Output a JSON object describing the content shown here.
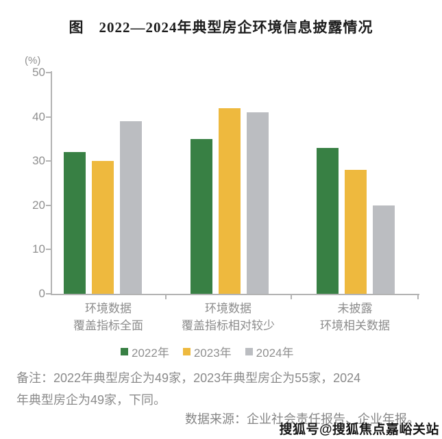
{
  "title": "图　2022—2024年典型房企环境信息披露情况",
  "chart_data": {
    "type": "bar",
    "title": "图　2022—2024年典型房企环境信息披露情况",
    "unit_label": "(%)",
    "ylim": [
      0,
      50
    ],
    "yticks": [
      0,
      10,
      20,
      30,
      40,
      50
    ],
    "grid": false,
    "legend_position": "bottom",
    "categories": [
      {
        "line1": "环境数据",
        "line2": "覆盖指标全面"
      },
      {
        "line1": "环境数据",
        "line2": "覆盖指标相对较少"
      },
      {
        "line1": "未披露",
        "line2": "环境相关数据"
      }
    ],
    "series": [
      {
        "name": "2022年",
        "color": "#388044",
        "values": [
          32,
          35,
          33
        ]
      },
      {
        "name": "2023年",
        "color": "#EEB93E",
        "values": [
          30,
          42,
          28
        ]
      },
      {
        "name": "2024年",
        "color": "#BBBDC1",
        "values": [
          39,
          41,
          20
        ]
      }
    ]
  },
  "colors": {
    "axis": "#B3B3B3",
    "tick_text": "#8F8F8F",
    "category_text": "#8C8C8C",
    "note_text": "#8A8A8A",
    "title_text": "#1C1C1C"
  },
  "notes": {
    "remark_lines": [
      "备注：2022年典型房企为49家，2023年典型房企为55家，2024",
      "年典型房企为49家，下同。"
    ],
    "source": "数据来源：企业社会责任报告、企业年报。"
  },
  "watermark": "搜狐号@搜狐焦点嘉峪关站"
}
